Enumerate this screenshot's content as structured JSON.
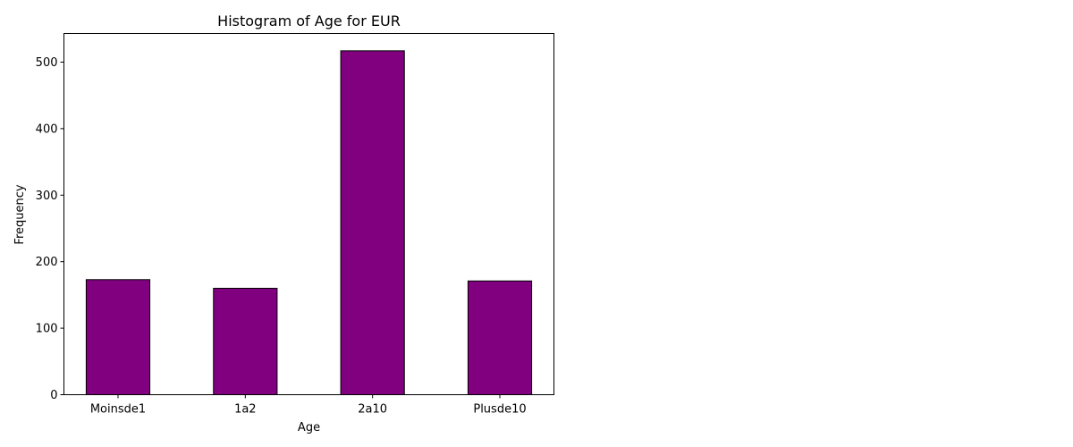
{
  "chart_data": {
    "type": "bar",
    "title": "Histogram of Age for EUR",
    "xlabel": "Age",
    "ylabel": "Frequency",
    "categories": [
      "Moinsde1",
      "1a2",
      "2a10",
      "Plusde10"
    ],
    "values": [
      173,
      160,
      517,
      171
    ],
    "ylim": [
      0,
      543
    ],
    "yticks": [
      0,
      100,
      200,
      300,
      400,
      500
    ],
    "grid": false,
    "bar_color": "#800080",
    "edge_color": "#000000"
  }
}
